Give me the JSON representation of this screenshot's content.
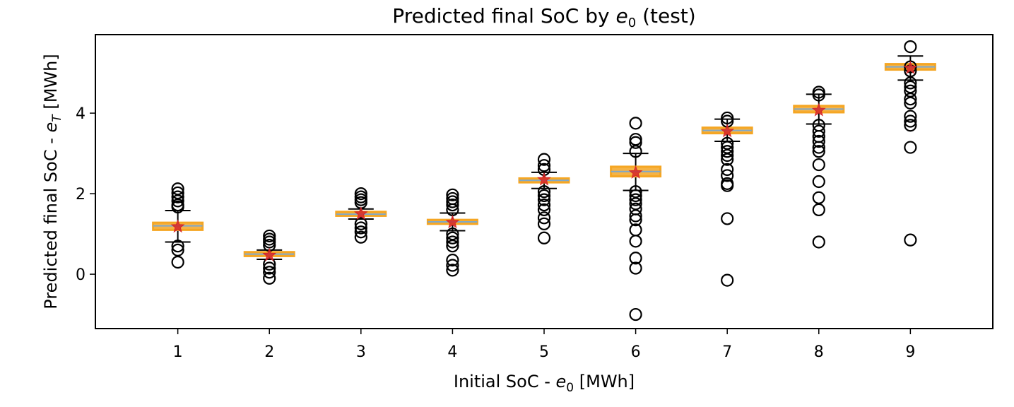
{
  "chart_data": {
    "type": "box",
    "title": "Predicted final SoC by",
    "title_symbol": "e",
    "title_subscript": "0",
    "title_suffix": "(test)",
    "xlabel": "Initial SoC -",
    "xlabel_symbol": "e",
    "xlabel_subscript": "0",
    "xlabel_suffix": "[MWh]",
    "ylabel": "Predicted final SoC -",
    "ylabel_symbol": "e",
    "ylabel_subscript": "T",
    "ylabel_suffix": "[MWh]",
    "xlim": [
      0.1,
      9.9
    ],
    "ylim": [
      -1.35,
      5.95
    ],
    "categories": [
      "1",
      "2",
      "3",
      "4",
      "5",
      "6",
      "7",
      "8",
      "9"
    ],
    "yticks": [
      "0",
      "2",
      "4"
    ],
    "ytick_values": [
      0,
      2,
      4
    ],
    "colors": {
      "box": "#f5a623",
      "median": "#7fa8c9",
      "mean": "#d62728",
      "whisker": "#000000",
      "flier": "#000000"
    },
    "groups": [
      {
        "x": 1,
        "q1": 1.1,
        "median": 1.2,
        "q3": 1.28,
        "whislo": 0.8,
        "whishi": 1.58,
        "mean": 1.18,
        "fliers": [
          2.12,
          2.02,
          1.92,
          1.82,
          1.72,
          1.67,
          0.7,
          0.6,
          0.3
        ]
      },
      {
        "x": 2,
        "q1": 0.45,
        "median": 0.5,
        "q3": 0.55,
        "whislo": 0.37,
        "whishi": 0.6,
        "mean": 0.47,
        "fliers": [
          0.95,
          0.87,
          0.8,
          0.72,
          0.25,
          0.15,
          0.05,
          -0.1
        ]
      },
      {
        "x": 3,
        "q1": 1.45,
        "median": 1.49,
        "q3": 1.55,
        "whislo": 1.37,
        "whishi": 1.62,
        "mean": 1.5,
        "fliers": [
          2.0,
          1.92,
          1.85,
          1.78,
          1.25,
          1.15,
          1.05,
          0.92
        ]
      },
      {
        "x": 4,
        "q1": 1.25,
        "median": 1.3,
        "q3": 1.35,
        "whislo": 1.08,
        "whishi": 1.52,
        "mean": 1.29,
        "fliers": [
          1.97,
          1.88,
          1.8,
          1.72,
          1.6,
          1.0,
          0.9,
          0.8,
          0.7,
          0.35,
          0.22,
          0.1
        ]
      },
      {
        "x": 5,
        "q1": 2.28,
        "median": 2.33,
        "q3": 2.38,
        "whislo": 2.13,
        "whishi": 2.53,
        "mean": 2.35,
        "fliers": [
          2.85,
          2.7,
          2.6,
          2.05,
          1.95,
          1.85,
          1.72,
          1.6,
          1.4,
          1.25,
          0.9
        ]
      },
      {
        "x": 6,
        "q1": 2.43,
        "median": 2.55,
        "q3": 2.67,
        "whislo": 2.08,
        "whishi": 3.0,
        "mean": 2.52,
        "fliers": [
          3.75,
          3.35,
          3.27,
          3.05,
          2.05,
          1.95,
          1.85,
          1.75,
          1.62,
          1.45,
          1.35,
          1.1,
          0.82,
          0.4,
          0.15,
          -1.0
        ]
      },
      {
        "x": 7,
        "q1": 3.5,
        "median": 3.57,
        "q3": 3.64,
        "whislo": 3.3,
        "whishi": 3.85,
        "mean": 3.55,
        "fliers": [
          3.88,
          3.8,
          3.25,
          3.15,
          3.05,
          2.95,
          2.85,
          2.6,
          2.45,
          2.25,
          2.2,
          1.38,
          -0.15
        ]
      },
      {
        "x": 8,
        "q1": 4.02,
        "median": 4.1,
        "q3": 4.18,
        "whislo": 3.73,
        "whishi": 4.47,
        "mean": 4.07,
        "fliers": [
          4.52,
          4.45,
          3.7,
          3.55,
          3.42,
          3.3,
          3.15,
          3.05,
          2.72,
          2.3,
          1.9,
          1.6,
          0.8
        ]
      },
      {
        "x": 9,
        "q1": 5.08,
        "median": 5.15,
        "q3": 5.22,
        "whislo": 4.82,
        "whishi": 5.42,
        "mean": 5.12,
        "fliers": [
          5.65,
          5.15,
          5.05,
          4.75,
          4.65,
          4.55,
          4.35,
          4.25,
          3.92,
          3.8,
          3.7,
          3.15,
          0.85
        ]
      }
    ]
  }
}
